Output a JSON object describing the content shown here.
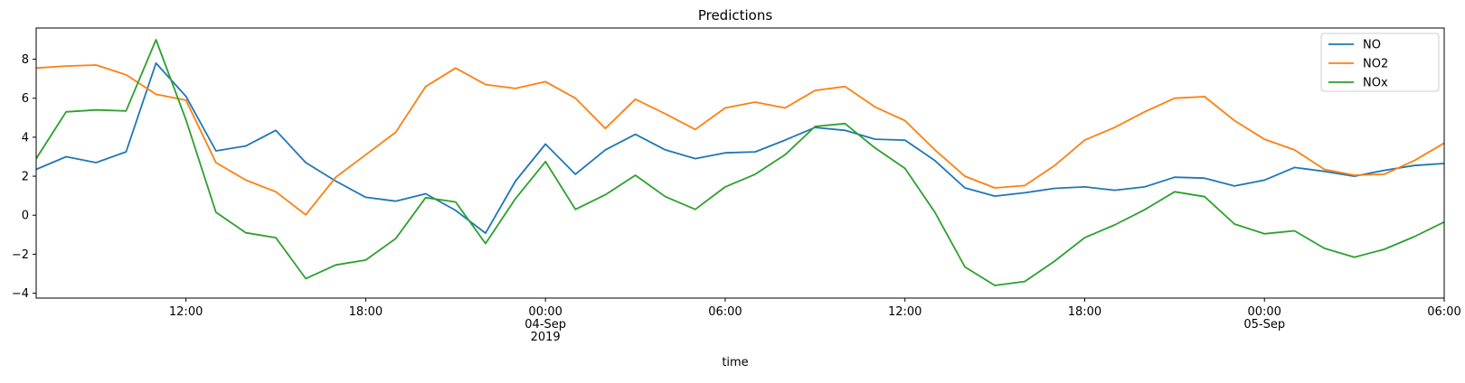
{
  "chart_data": {
    "type": "line",
    "title": "Predictions",
    "xlabel": "time",
    "ylabel": "",
    "ylim": [
      -4.25,
      9.6
    ],
    "xlim": [
      "2019-09-03 07:00",
      "2019-09-05 06:00"
    ],
    "grid": false,
    "legend_position": "top-right",
    "yticks": [
      -4,
      -2,
      0,
      2,
      4,
      6,
      8
    ],
    "xticks": [
      {
        "t": "2019-09-03 12:00",
        "lines": [
          "12:00"
        ]
      },
      {
        "t": "2019-09-03 18:00",
        "lines": [
          "18:00"
        ]
      },
      {
        "t": "2019-09-04 00:00",
        "lines": [
          "00:00",
          "04-Sep",
          "2019"
        ]
      },
      {
        "t": "2019-09-04 06:00",
        "lines": [
          "06:00"
        ]
      },
      {
        "t": "2019-09-04 12:00",
        "lines": [
          "12:00"
        ]
      },
      {
        "t": "2019-09-04 18:00",
        "lines": [
          "18:00"
        ]
      },
      {
        "t": "2019-09-05 00:00",
        "lines": [
          "00:00",
          "05-Sep"
        ]
      },
      {
        "t": "2019-09-05 06:00",
        "lines": [
          "06:00"
        ]
      }
    ],
    "x": [
      "2019-09-03 07:00",
      "2019-09-03 08:00",
      "2019-09-03 09:00",
      "2019-09-03 10:00",
      "2019-09-03 11:00",
      "2019-09-03 12:00",
      "2019-09-03 13:00",
      "2019-09-03 14:00",
      "2019-09-03 15:00",
      "2019-09-03 16:00",
      "2019-09-03 17:00",
      "2019-09-03 18:00",
      "2019-09-03 19:00",
      "2019-09-03 20:00",
      "2019-09-03 21:00",
      "2019-09-03 22:00",
      "2019-09-03 23:00",
      "2019-09-04 00:00",
      "2019-09-04 01:00",
      "2019-09-04 02:00",
      "2019-09-04 03:00",
      "2019-09-04 04:00",
      "2019-09-04 05:00",
      "2019-09-04 06:00",
      "2019-09-04 07:00",
      "2019-09-04 08:00",
      "2019-09-04 09:00",
      "2019-09-04 10:00",
      "2019-09-04 11:00",
      "2019-09-04 12:00",
      "2019-09-04 13:00",
      "2019-09-04 14:00",
      "2019-09-04 15:00",
      "2019-09-04 16:00",
      "2019-09-04 17:00",
      "2019-09-04 18:00",
      "2019-09-04 19:00",
      "2019-09-04 20:00",
      "2019-09-04 21:00",
      "2019-09-04 22:00",
      "2019-09-04 23:00",
      "2019-09-05 00:00",
      "2019-09-05 01:00",
      "2019-09-05 02:00",
      "2019-09-05 03:00",
      "2019-09-05 04:00",
      "2019-09-05 05:00",
      "2019-09-05 06:00"
    ],
    "series": [
      {
        "name": "NO",
        "color": "#1f77b4",
        "values": [
          2.35,
          3.0,
          2.7,
          3.25,
          7.8,
          6.1,
          3.3,
          3.55,
          4.35,
          2.7,
          1.75,
          0.92,
          0.72,
          1.1,
          0.25,
          -0.92,
          1.75,
          3.65,
          2.1,
          3.35,
          4.15,
          3.35,
          2.9,
          3.2,
          3.25,
          3.85,
          4.5,
          4.35,
          3.9,
          3.85,
          2.8,
          1.4,
          0.98,
          1.15,
          1.38,
          1.45,
          1.28,
          1.45,
          1.95,
          1.9,
          1.5,
          1.8,
          2.45,
          2.25,
          2.0,
          2.3,
          2.55,
          2.65
        ]
      },
      {
        "name": "NO2",
        "color": "#ff7f0e",
        "values": [
          7.55,
          7.65,
          7.7,
          7.2,
          6.2,
          5.9,
          2.7,
          1.8,
          1.2,
          0.02,
          1.95,
          3.1,
          4.25,
          6.6,
          7.55,
          6.7,
          6.5,
          6.85,
          6.0,
          4.45,
          5.95,
          5.2,
          4.4,
          5.5,
          5.8,
          5.5,
          6.4,
          6.6,
          5.55,
          4.85,
          3.35,
          2.0,
          1.4,
          1.52,
          2.55,
          3.85,
          4.5,
          5.3,
          6.0,
          6.08,
          4.85,
          3.9,
          3.35,
          2.35,
          2.05,
          2.1,
          2.8,
          3.7
        ]
      },
      {
        "name": "NOx",
        "color": "#2ca02c",
        "values": [
          2.9,
          5.3,
          5.4,
          5.35,
          9.0,
          4.9,
          0.15,
          -0.9,
          -1.15,
          -3.25,
          -2.55,
          -2.3,
          -1.2,
          0.9,
          0.68,
          -1.45,
          0.85,
          2.75,
          0.3,
          1.05,
          2.05,
          0.95,
          0.3,
          1.45,
          2.1,
          3.1,
          4.55,
          4.7,
          3.45,
          2.4,
          0.15,
          -2.65,
          -3.6,
          -3.4,
          -2.35,
          -1.15,
          -0.5,
          0.28,
          1.2,
          0.95,
          -0.45,
          -0.95,
          -0.8,
          -1.7,
          -2.15,
          -1.75,
          -1.1,
          -0.35
        ]
      }
    ]
  }
}
